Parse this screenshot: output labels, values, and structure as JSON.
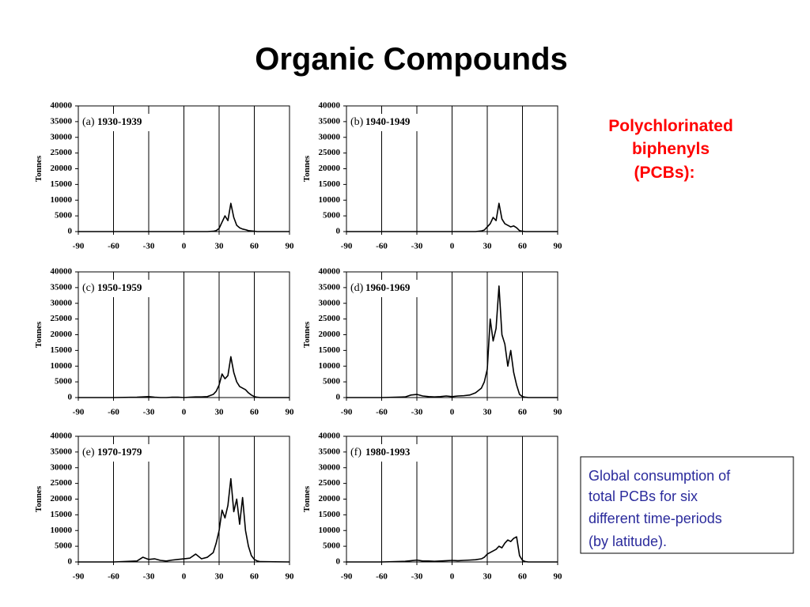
{
  "title": "Organic Compounds",
  "side_label": {
    "lines": [
      "Polychlorinated",
      "biphenyls",
      "(PCBs):"
    ]
  },
  "caption": {
    "lines": [
      "Global consumption of",
      "total PCBs for six",
      "different time-periods",
      "(by latitude)."
    ]
  },
  "chart_data": [
    {
      "type": "line",
      "panel_label": "(a)",
      "period": "1930-1939",
      "ylabel": "Tonnes",
      "color": "#000000",
      "grid": "x",
      "xlim": [
        -90,
        90
      ],
      "ylim": [
        0,
        40000
      ],
      "xticks": [
        -90,
        -60,
        -30,
        0,
        30,
        60,
        90
      ],
      "yticks": [
        0,
        5000,
        10000,
        15000,
        20000,
        25000,
        30000,
        35000,
        40000
      ],
      "x": [
        -90,
        -60,
        -40,
        -35,
        -30,
        -25,
        -20,
        -15,
        -10,
        -5,
        0,
        5,
        10,
        15,
        20,
        25,
        27.5,
        30,
        32.5,
        35,
        37.5,
        40,
        42.5,
        45,
        47.5,
        50,
        52.5,
        55,
        57.5,
        60,
        62.5,
        65,
        90
      ],
      "values": [
        0,
        0,
        0,
        0,
        0,
        0,
        0,
        0,
        0,
        0,
        0,
        0,
        0,
        0,
        0,
        100,
        300,
        1000,
        3000,
        5000,
        3500,
        9000,
        4500,
        2000,
        1200,
        800,
        600,
        300,
        200,
        100,
        0,
        0,
        0
      ]
    },
    {
      "type": "line",
      "panel_label": "(b)",
      "period": "1940-1949",
      "ylabel": "Tonnes",
      "color": "#000000",
      "grid": "x",
      "xlim": [
        -90,
        90
      ],
      "ylim": [
        0,
        40000
      ],
      "xticks": [
        -90,
        -60,
        -30,
        0,
        30,
        60,
        90
      ],
      "yticks": [
        0,
        5000,
        10000,
        15000,
        20000,
        25000,
        30000,
        35000,
        40000
      ],
      "x": [
        -90,
        -60,
        -40,
        -35,
        -30,
        -25,
        -20,
        -15,
        -10,
        -5,
        0,
        5,
        10,
        15,
        20,
        25,
        27.5,
        30,
        32.5,
        35,
        37.5,
        40,
        42.5,
        45,
        47.5,
        50,
        52.5,
        55,
        57.5,
        60,
        62.5,
        65,
        90
      ],
      "values": [
        0,
        0,
        0,
        0,
        0,
        0,
        0,
        0,
        0,
        0,
        0,
        0,
        0,
        0,
        0,
        200,
        500,
        1500,
        2500,
        4500,
        3500,
        9000,
        4000,
        2500,
        2000,
        1500,
        1800,
        1200,
        300,
        100,
        0,
        0,
        0
      ]
    },
    {
      "type": "line",
      "panel_label": "(c)",
      "period": "1950-1959",
      "ylabel": "Tonnes",
      "color": "#000000",
      "grid": "x",
      "xlim": [
        -90,
        90
      ],
      "ylim": [
        0,
        40000
      ],
      "xticks": [
        -90,
        -60,
        -30,
        0,
        30,
        60,
        90
      ],
      "yticks": [
        0,
        5000,
        10000,
        15000,
        20000,
        25000,
        30000,
        35000,
        40000
      ],
      "x": [
        -90,
        -60,
        -40,
        -35,
        -30,
        -25,
        -20,
        -15,
        -10,
        -5,
        0,
        5,
        10,
        15,
        20,
        25,
        27.5,
        30,
        32.5,
        35,
        37.5,
        40,
        42.5,
        45,
        47.5,
        50,
        52.5,
        55,
        57.5,
        60,
        62.5,
        65,
        90
      ],
      "values": [
        0,
        0,
        100,
        200,
        300,
        100,
        0,
        0,
        100,
        100,
        0,
        100,
        200,
        200,
        300,
        1000,
        2000,
        4000,
        7500,
        6000,
        7000,
        13000,
        8000,
        5000,
        3500,
        3000,
        2500,
        1500,
        800,
        300,
        100,
        0,
        0
      ]
    },
    {
      "type": "line",
      "panel_label": "(d)",
      "period": "1960-1969",
      "ylabel": "Tonnes",
      "color": "#000000",
      "grid": "x",
      "xlim": [
        -90,
        90
      ],
      "ylim": [
        0,
        40000
      ],
      "xticks": [
        -90,
        -60,
        -30,
        0,
        30,
        60,
        90
      ],
      "yticks": [
        0,
        5000,
        10000,
        15000,
        20000,
        25000,
        30000,
        35000,
        40000
      ],
      "x": [
        -90,
        -60,
        -40,
        -35,
        -30,
        -25,
        -20,
        -15,
        -10,
        -5,
        0,
        5,
        10,
        15,
        20,
        25,
        27.5,
        30,
        32.5,
        35,
        37.5,
        40,
        42.5,
        45,
        47.5,
        50,
        52.5,
        55,
        57.5,
        60,
        62.5,
        65,
        90
      ],
      "values": [
        0,
        0,
        200,
        800,
        1000,
        500,
        300,
        200,
        300,
        500,
        300,
        500,
        600,
        800,
        1500,
        3000,
        5000,
        9000,
        25000,
        18000,
        22000,
        35500,
        20000,
        17000,
        10000,
        15000,
        8000,
        4000,
        1000,
        300,
        100,
        0,
        0
      ]
    },
    {
      "type": "line",
      "panel_label": "(e)",
      "period": "1970-1979",
      "ylabel": "Tonnes",
      "color": "#000000",
      "grid": "x",
      "xlim": [
        -90,
        90
      ],
      "ylim": [
        0,
        40000
      ],
      "xticks": [
        -90,
        -60,
        -30,
        0,
        30,
        60,
        90
      ],
      "yticks": [
        0,
        5000,
        10000,
        15000,
        20000,
        25000,
        30000,
        35000,
        40000
      ],
      "x": [
        -90,
        -60,
        -40,
        -35,
        -30,
        -25,
        -20,
        -15,
        -10,
        -5,
        0,
        5,
        10,
        15,
        20,
        25,
        27.5,
        30,
        32.5,
        35,
        37.5,
        40,
        42.5,
        45,
        47.5,
        50,
        52.5,
        55,
        57.5,
        60,
        62.5,
        65,
        90
      ],
      "values": [
        0,
        0,
        300,
        1500,
        800,
        1000,
        500,
        300,
        600,
        800,
        1000,
        1200,
        2500,
        1000,
        1500,
        3000,
        6000,
        10000,
        16500,
        14000,
        18000,
        26500,
        16000,
        20000,
        12000,
        20500,
        10000,
        5000,
        2000,
        800,
        300,
        100,
        0
      ]
    },
    {
      "type": "line",
      "panel_label": "(f)",
      "period": "1980-1993",
      "ylabel": "Tonnes",
      "color": "#000000",
      "grid": "x",
      "xlim": [
        -90,
        90
      ],
      "ylim": [
        0,
        40000
      ],
      "xticks": [
        -90,
        -60,
        -30,
        0,
        30,
        60,
        90
      ],
      "yticks": [
        0,
        5000,
        10000,
        15000,
        20000,
        25000,
        30000,
        35000,
        40000
      ],
      "x": [
        -90,
        -60,
        -40,
        -35,
        -30,
        -25,
        -20,
        -15,
        -10,
        -5,
        0,
        5,
        10,
        15,
        20,
        25,
        27.5,
        30,
        32.5,
        35,
        37.5,
        40,
        42.5,
        45,
        47.5,
        50,
        52.5,
        55,
        57.5,
        60,
        62.5,
        65,
        90
      ],
      "values": [
        0,
        0,
        200,
        400,
        600,
        300,
        300,
        200,
        300,
        400,
        500,
        400,
        500,
        600,
        700,
        1000,
        1500,
        2500,
        3000,
        3500,
        4000,
        5000,
        4500,
        6000,
        7000,
        6500,
        7500,
        8000,
        2000,
        500,
        100,
        0,
        0
      ]
    }
  ]
}
